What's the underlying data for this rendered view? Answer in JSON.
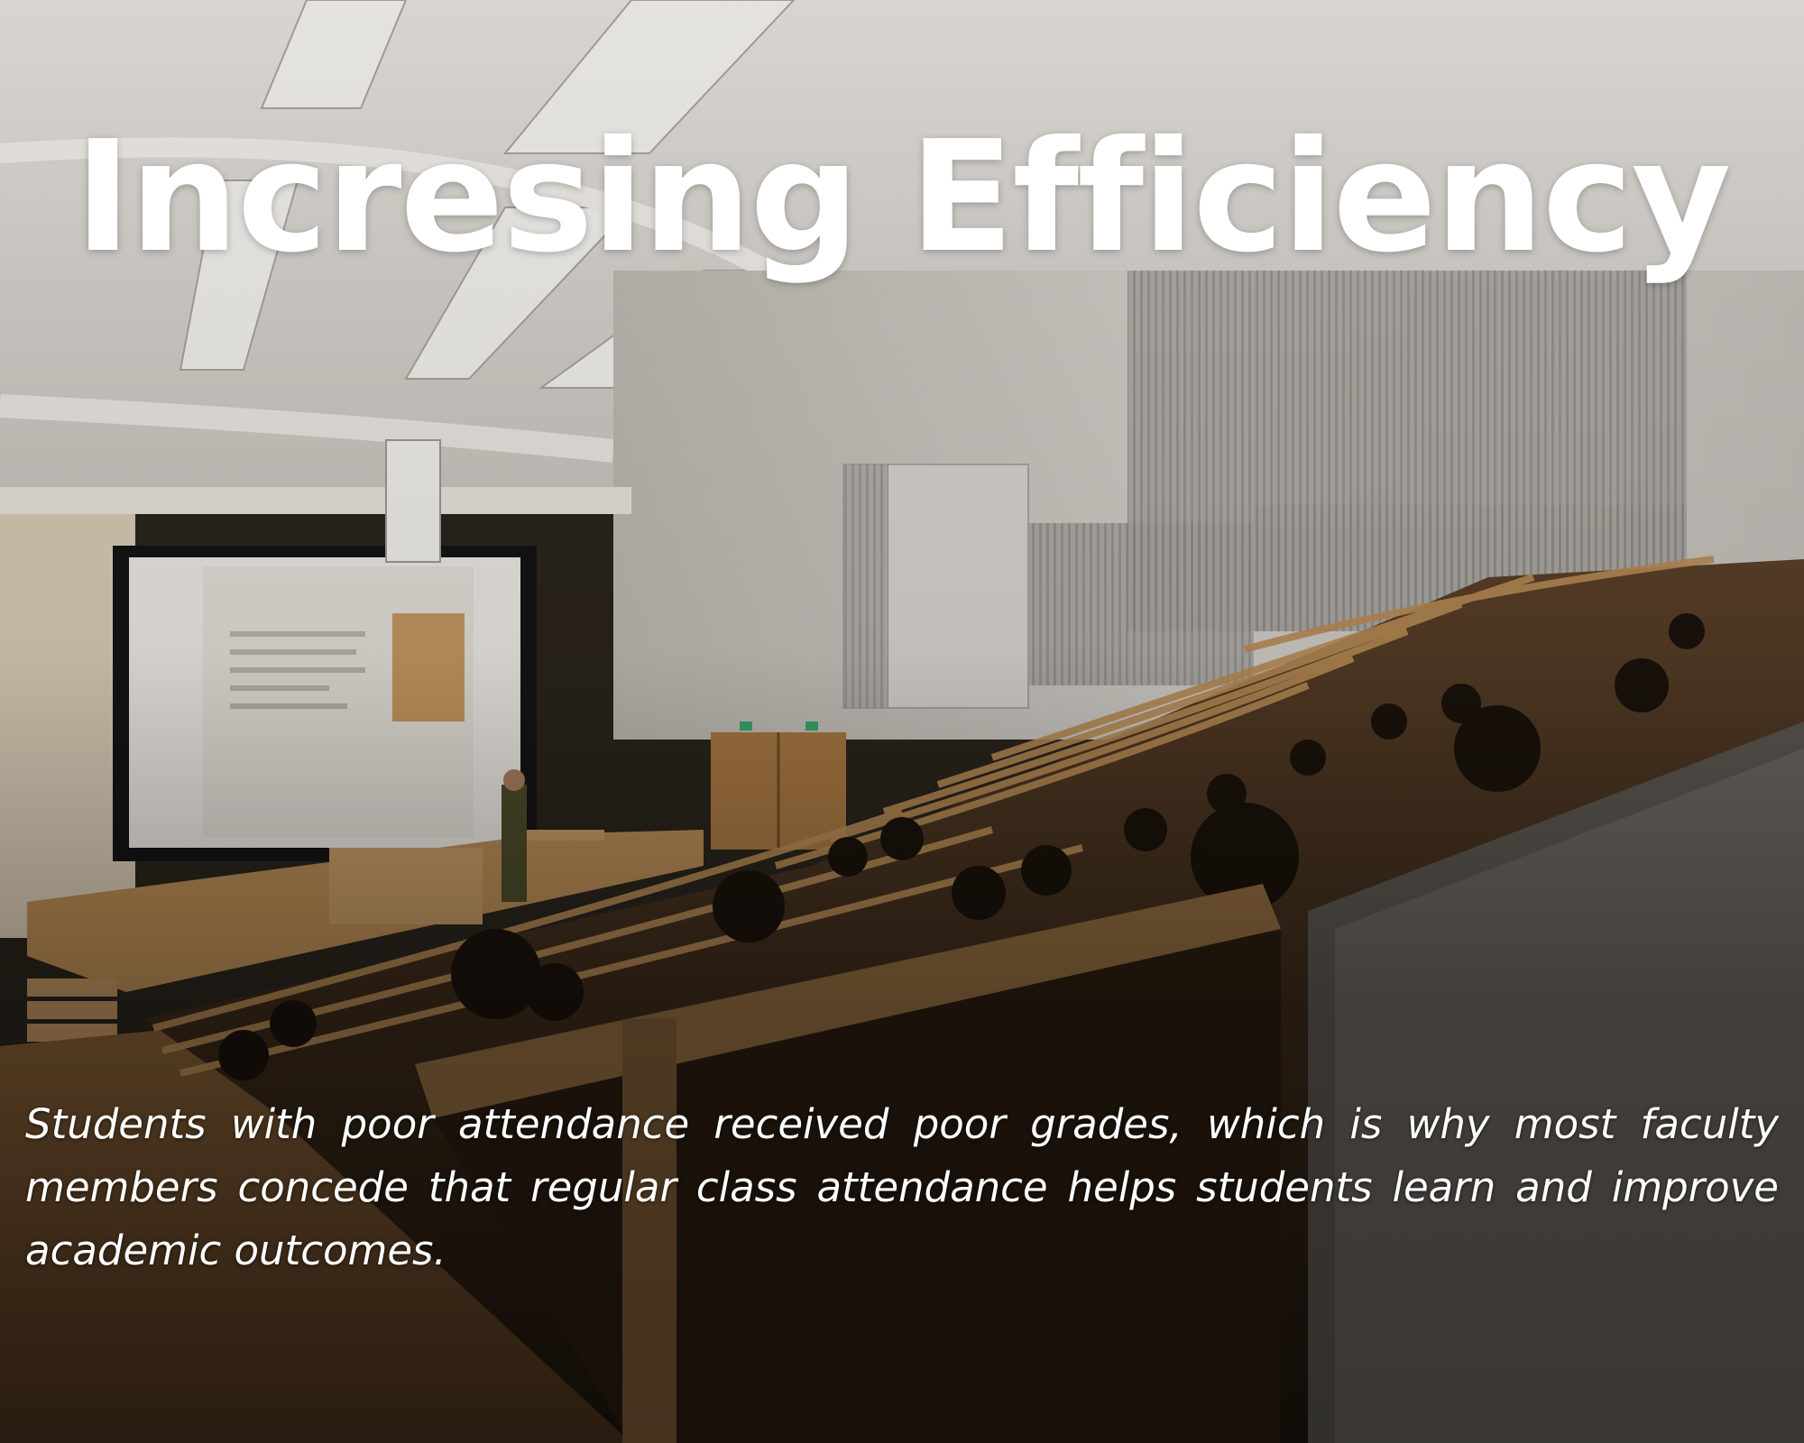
{
  "slide": {
    "title": "Incresing Efficiency",
    "body": "Students with poor attendance received poor grades, which is why most faculty members concede that regular class attendance helps students learn and improve academic outcomes."
  },
  "background": {
    "subject": "lecture-hall-photo",
    "colors": {
      "ceiling": "#d9d6d1",
      "wall": "#cfccc6",
      "wood": "#b58a52",
      "dark_seats": "#3a2a18",
      "screen": "#e9e6e2"
    }
  }
}
